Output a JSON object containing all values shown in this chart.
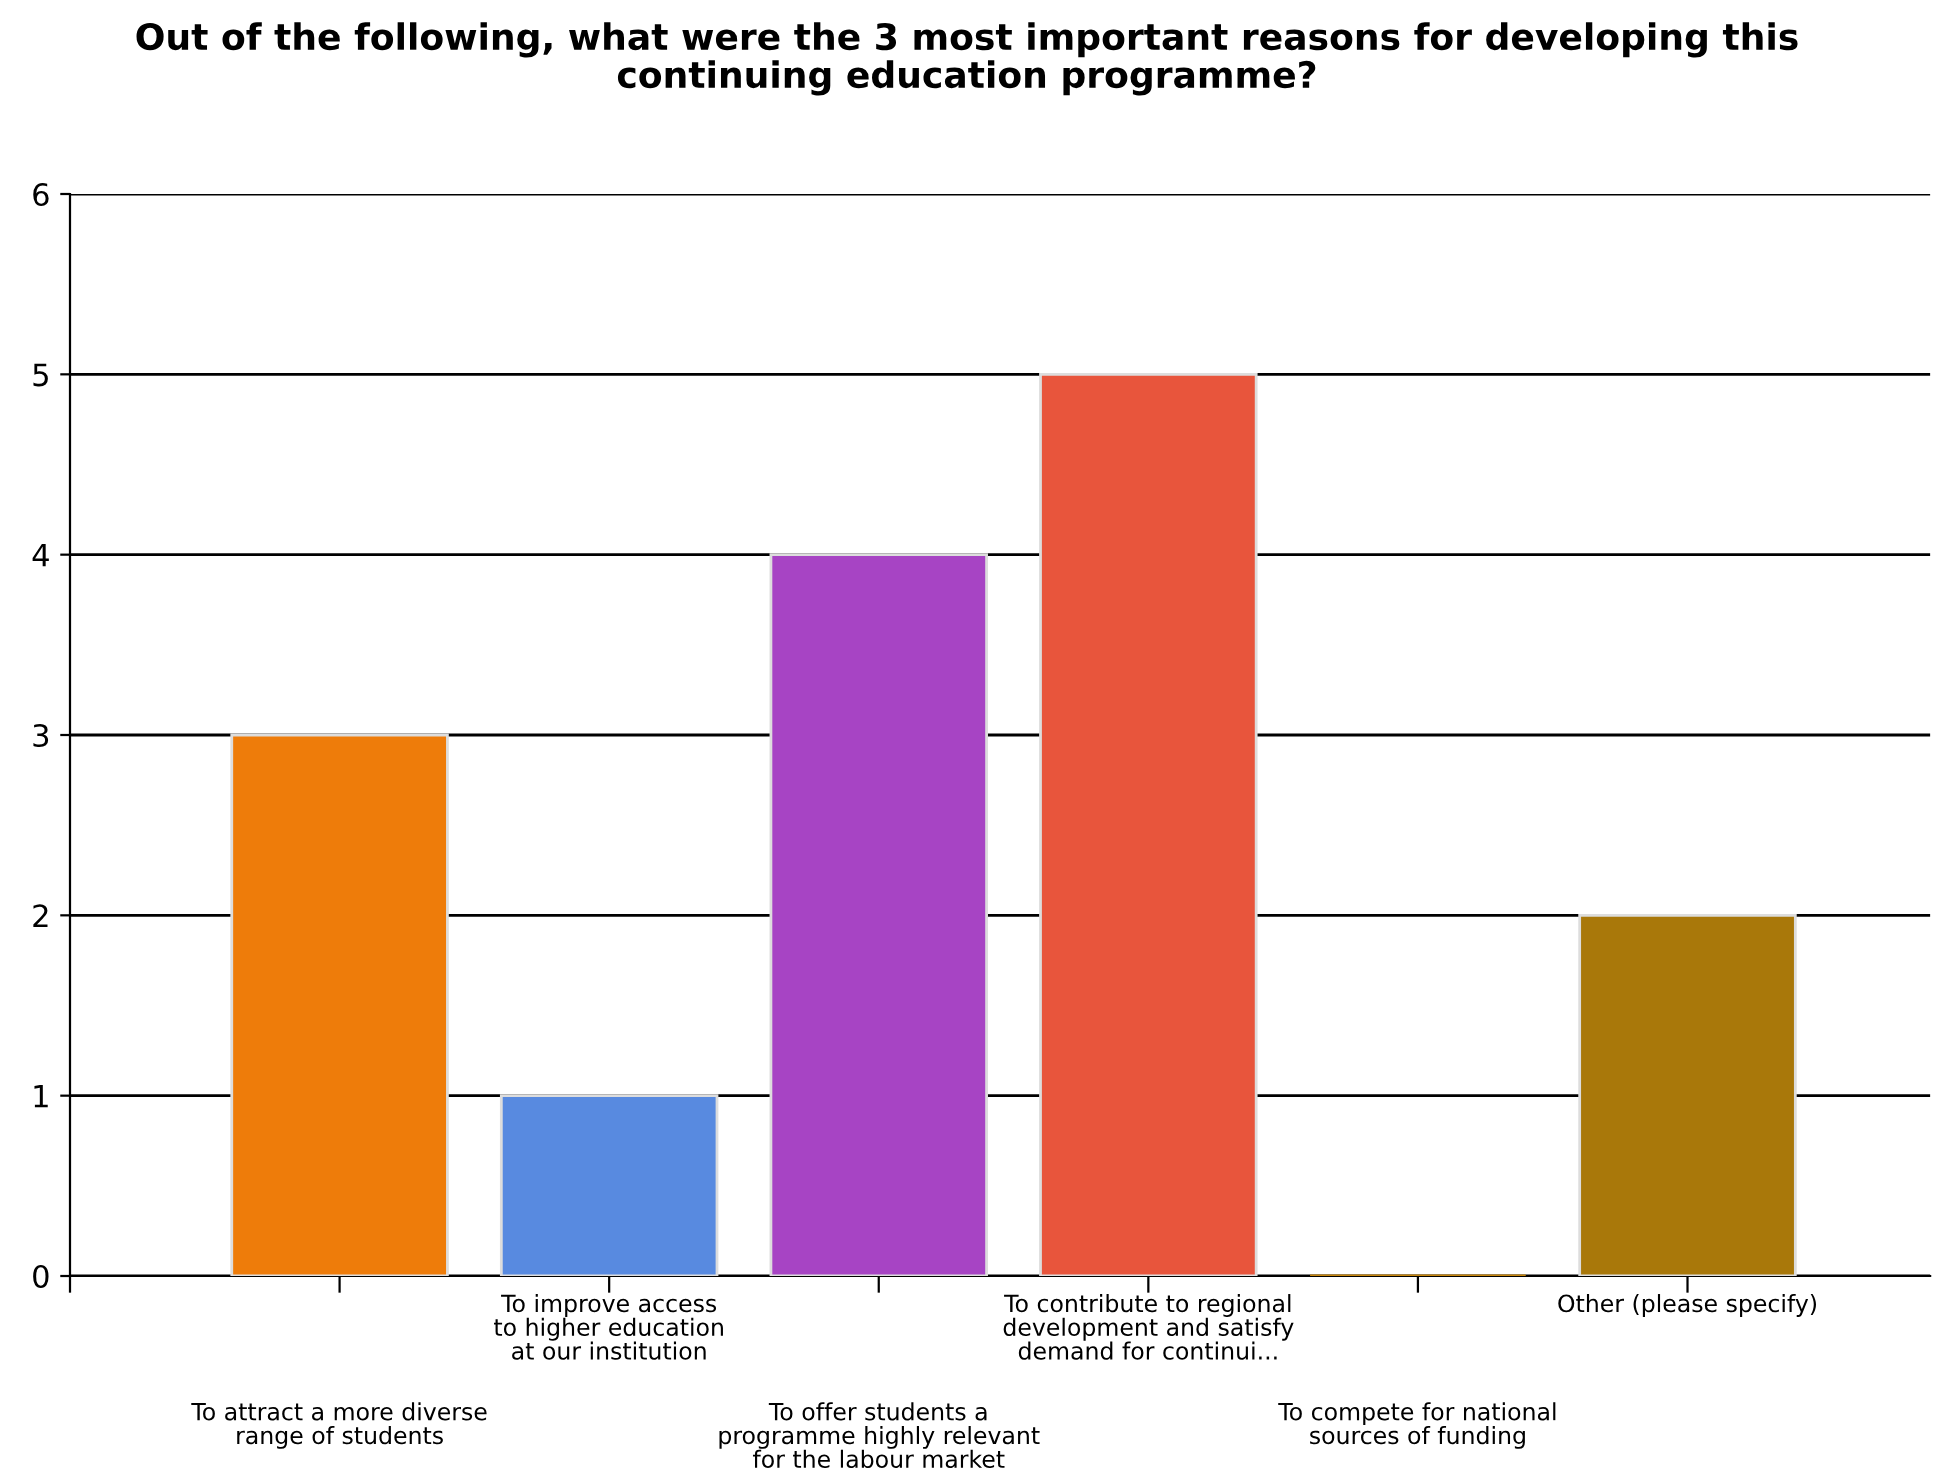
{
  "chart_data": {
    "type": "bar",
    "title": "Out of the following, what were the 3 most important reasons for developing this\ncontinuing education programme?",
    "categories": [
      "To attract a more diverse\nrange of students",
      "To improve access\nto higher education\nat our institution",
      "To offer students a\nprogramme highly relevant\nfor the labour market",
      "To contribute to regional\ndevelopment and satisfy\ndemand for continui...",
      "To compete for national\nsources of funding",
      "Other (please specify)"
    ],
    "values": [
      3,
      1,
      4,
      5,
      0,
      2
    ],
    "colors": [
      "#ee7c0a",
      "#588ae0",
      "#a744c4",
      "#e8553c",
      "#c8860c",
      "#a9780a"
    ],
    "ylim": [
      0,
      6
    ],
    "yticks": [
      0,
      1,
      2,
      3,
      4,
      5,
      6
    ],
    "grid": "y"
  }
}
